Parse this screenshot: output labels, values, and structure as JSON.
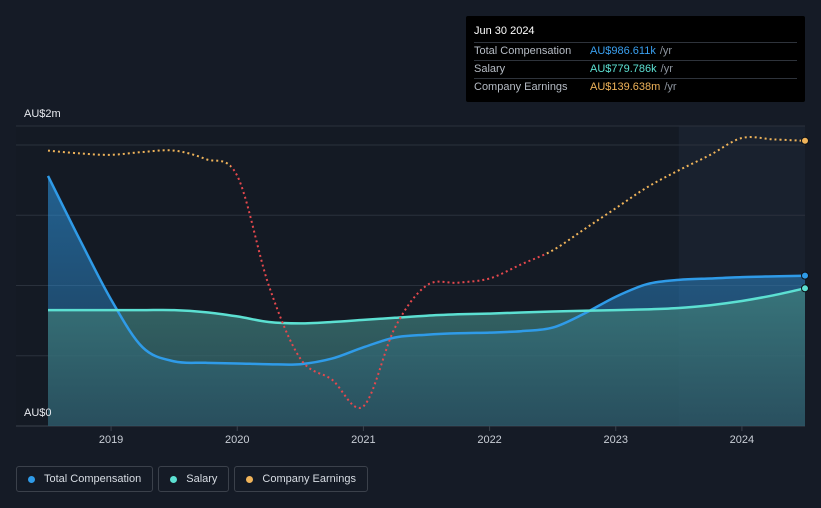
{
  "tooltip": {
    "date": "Jun 30 2024",
    "rows": [
      {
        "label": "Total Compensation",
        "value": "AU$986.611k",
        "unit": "/yr",
        "color": "#3aa0f0"
      },
      {
        "label": "Salary",
        "value": "AU$779.786k",
        "unit": "/yr",
        "color": "#5ce0d2"
      },
      {
        "label": "Company Earnings",
        "value": "AU$139.638m",
        "unit": "/yr",
        "color": "#f0b45a"
      }
    ]
  },
  "legend": [
    {
      "label": "Total Compensation",
      "color": "#2f9be8"
    },
    {
      "label": "Salary",
      "color": "#5ce0d2"
    },
    {
      "label": "Company Earnings",
      "color": "#f0b45a"
    }
  ],
  "chart_data": {
    "type": "line",
    "y_top_label": "AU$2m",
    "y_bottom_label": "AU$0",
    "ylim": [
      0,
      2000000
    ],
    "xlim": [
      2018.5,
      2024.5
    ],
    "x_ticks": [
      "2019",
      "2020",
      "2021",
      "2022",
      "2023",
      "2024"
    ],
    "x_tick_values": [
      2019,
      2020,
      2021,
      2022,
      2023,
      2024
    ],
    "shaded_from": 2023.5,
    "series": [
      {
        "name": "Total Compensation",
        "color": "#2f9be8",
        "x": [
          2018.5,
          2018.75,
          2019.0,
          2019.25,
          2019.5,
          2019.75,
          2020.0,
          2020.25,
          2020.5,
          2020.75,
          2021.0,
          2021.25,
          2021.5,
          2021.75,
          2022.0,
          2022.25,
          2022.5,
          2022.75,
          2023.0,
          2023.25,
          2023.5,
          2023.75,
          2024.0,
          2024.25,
          2024.5
        ],
        "values": [
          1780000,
          1330000,
          900000,
          560000,
          460000,
          450000,
          445000,
          440000,
          440000,
          480000,
          560000,
          630000,
          650000,
          660000,
          665000,
          675000,
          700000,
          800000,
          920000,
          1010000,
          1040000,
          1050000,
          1060000,
          1065000,
          1070000
        ]
      },
      {
        "name": "Salary",
        "color": "#5ce0d2",
        "x": [
          2018.5,
          2018.75,
          2019.0,
          2019.25,
          2019.5,
          2019.75,
          2020.0,
          2020.25,
          2020.5,
          2020.75,
          2021.0,
          2021.25,
          2021.5,
          2021.75,
          2022.0,
          2022.25,
          2022.5,
          2022.75,
          2023.0,
          2023.25,
          2023.5,
          2023.75,
          2024.0,
          2024.25,
          2024.5
        ],
        "values": [
          825000,
          825000,
          825000,
          825000,
          825000,
          810000,
          780000,
          740000,
          730000,
          740000,
          755000,
          770000,
          785000,
          795000,
          800000,
          808000,
          815000,
          820000,
          825000,
          830000,
          840000,
          860000,
          890000,
          930000,
          980000
        ]
      },
      {
        "name": "Company Earnings",
        "color": "#f0b45a",
        "negative_color": "#e5484d",
        "dashed": true,
        "x": [
          2018.5,
          2018.75,
          2019.0,
          2019.25,
          2019.5,
          2019.75,
          2020.0,
          2020.25,
          2020.5,
          2020.75,
          2021.0,
          2021.25,
          2021.5,
          2021.75,
          2022.0,
          2022.25,
          2022.5,
          2022.75,
          2023.0,
          2023.25,
          2023.5,
          2023.75,
          2024.0,
          2024.25,
          2024.5
        ],
        "values": [
          1960000,
          1940000,
          1930000,
          1950000,
          1960000,
          1900000,
          1780000,
          1000000,
          480000,
          330000,
          140000,
          700000,
          1000000,
          1020000,
          1050000,
          1150000,
          1250000,
          1400000,
          1550000,
          1700000,
          1820000,
          1930000,
          2050000,
          2040000,
          2030000
        ]
      }
    ]
  }
}
